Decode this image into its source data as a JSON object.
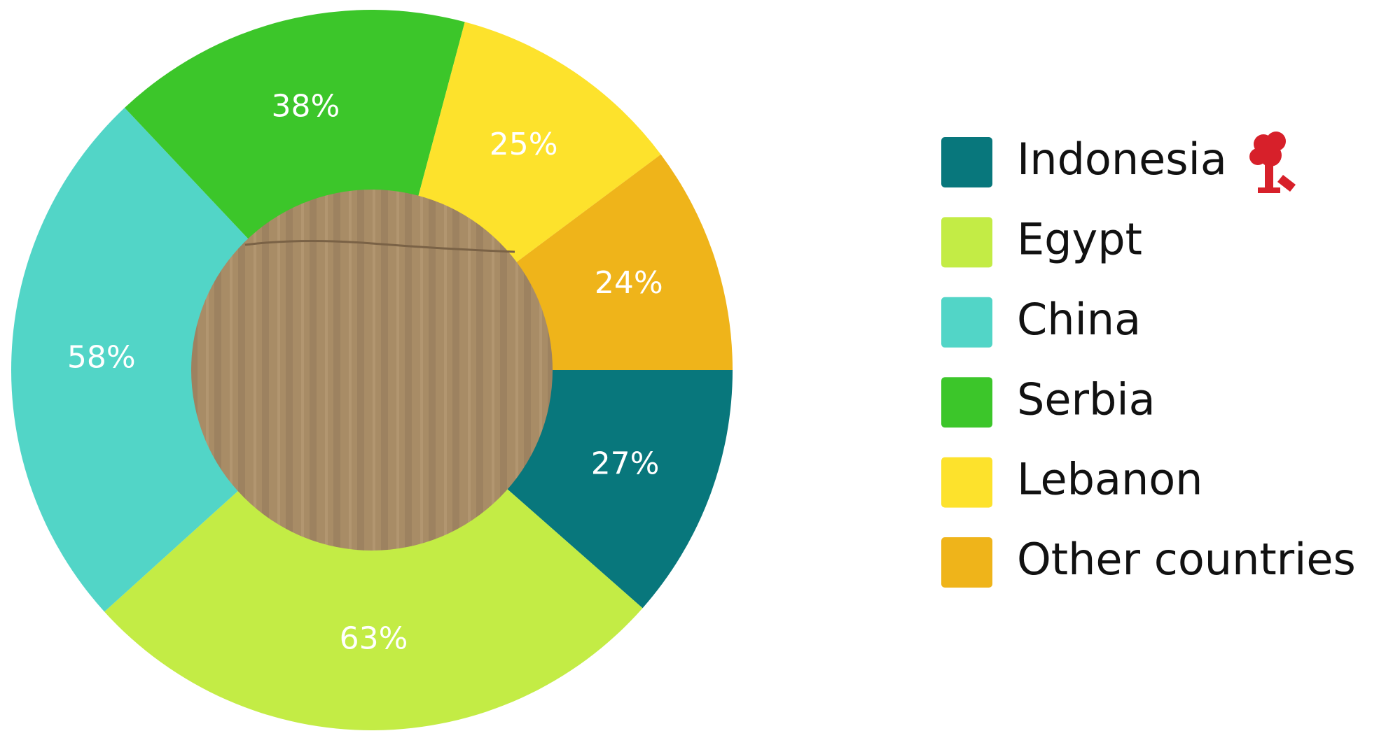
{
  "chart_data": {
    "type": "donut",
    "categories": [
      "Indonesia",
      "Egypt",
      "China",
      "Serbia",
      "Lebanon",
      "Other countries"
    ],
    "values": [
      27,
      63,
      58,
      38,
      25,
      24
    ],
    "value_labels": [
      "27%",
      "63%",
      "58%",
      "38%",
      "25%",
      "24%"
    ],
    "colors": [
      "#08777c",
      "#c3ec45",
      "#52d5c7",
      "#3cc62a",
      "#fde22c",
      "#efb41a"
    ],
    "legend": "right"
  }
}
